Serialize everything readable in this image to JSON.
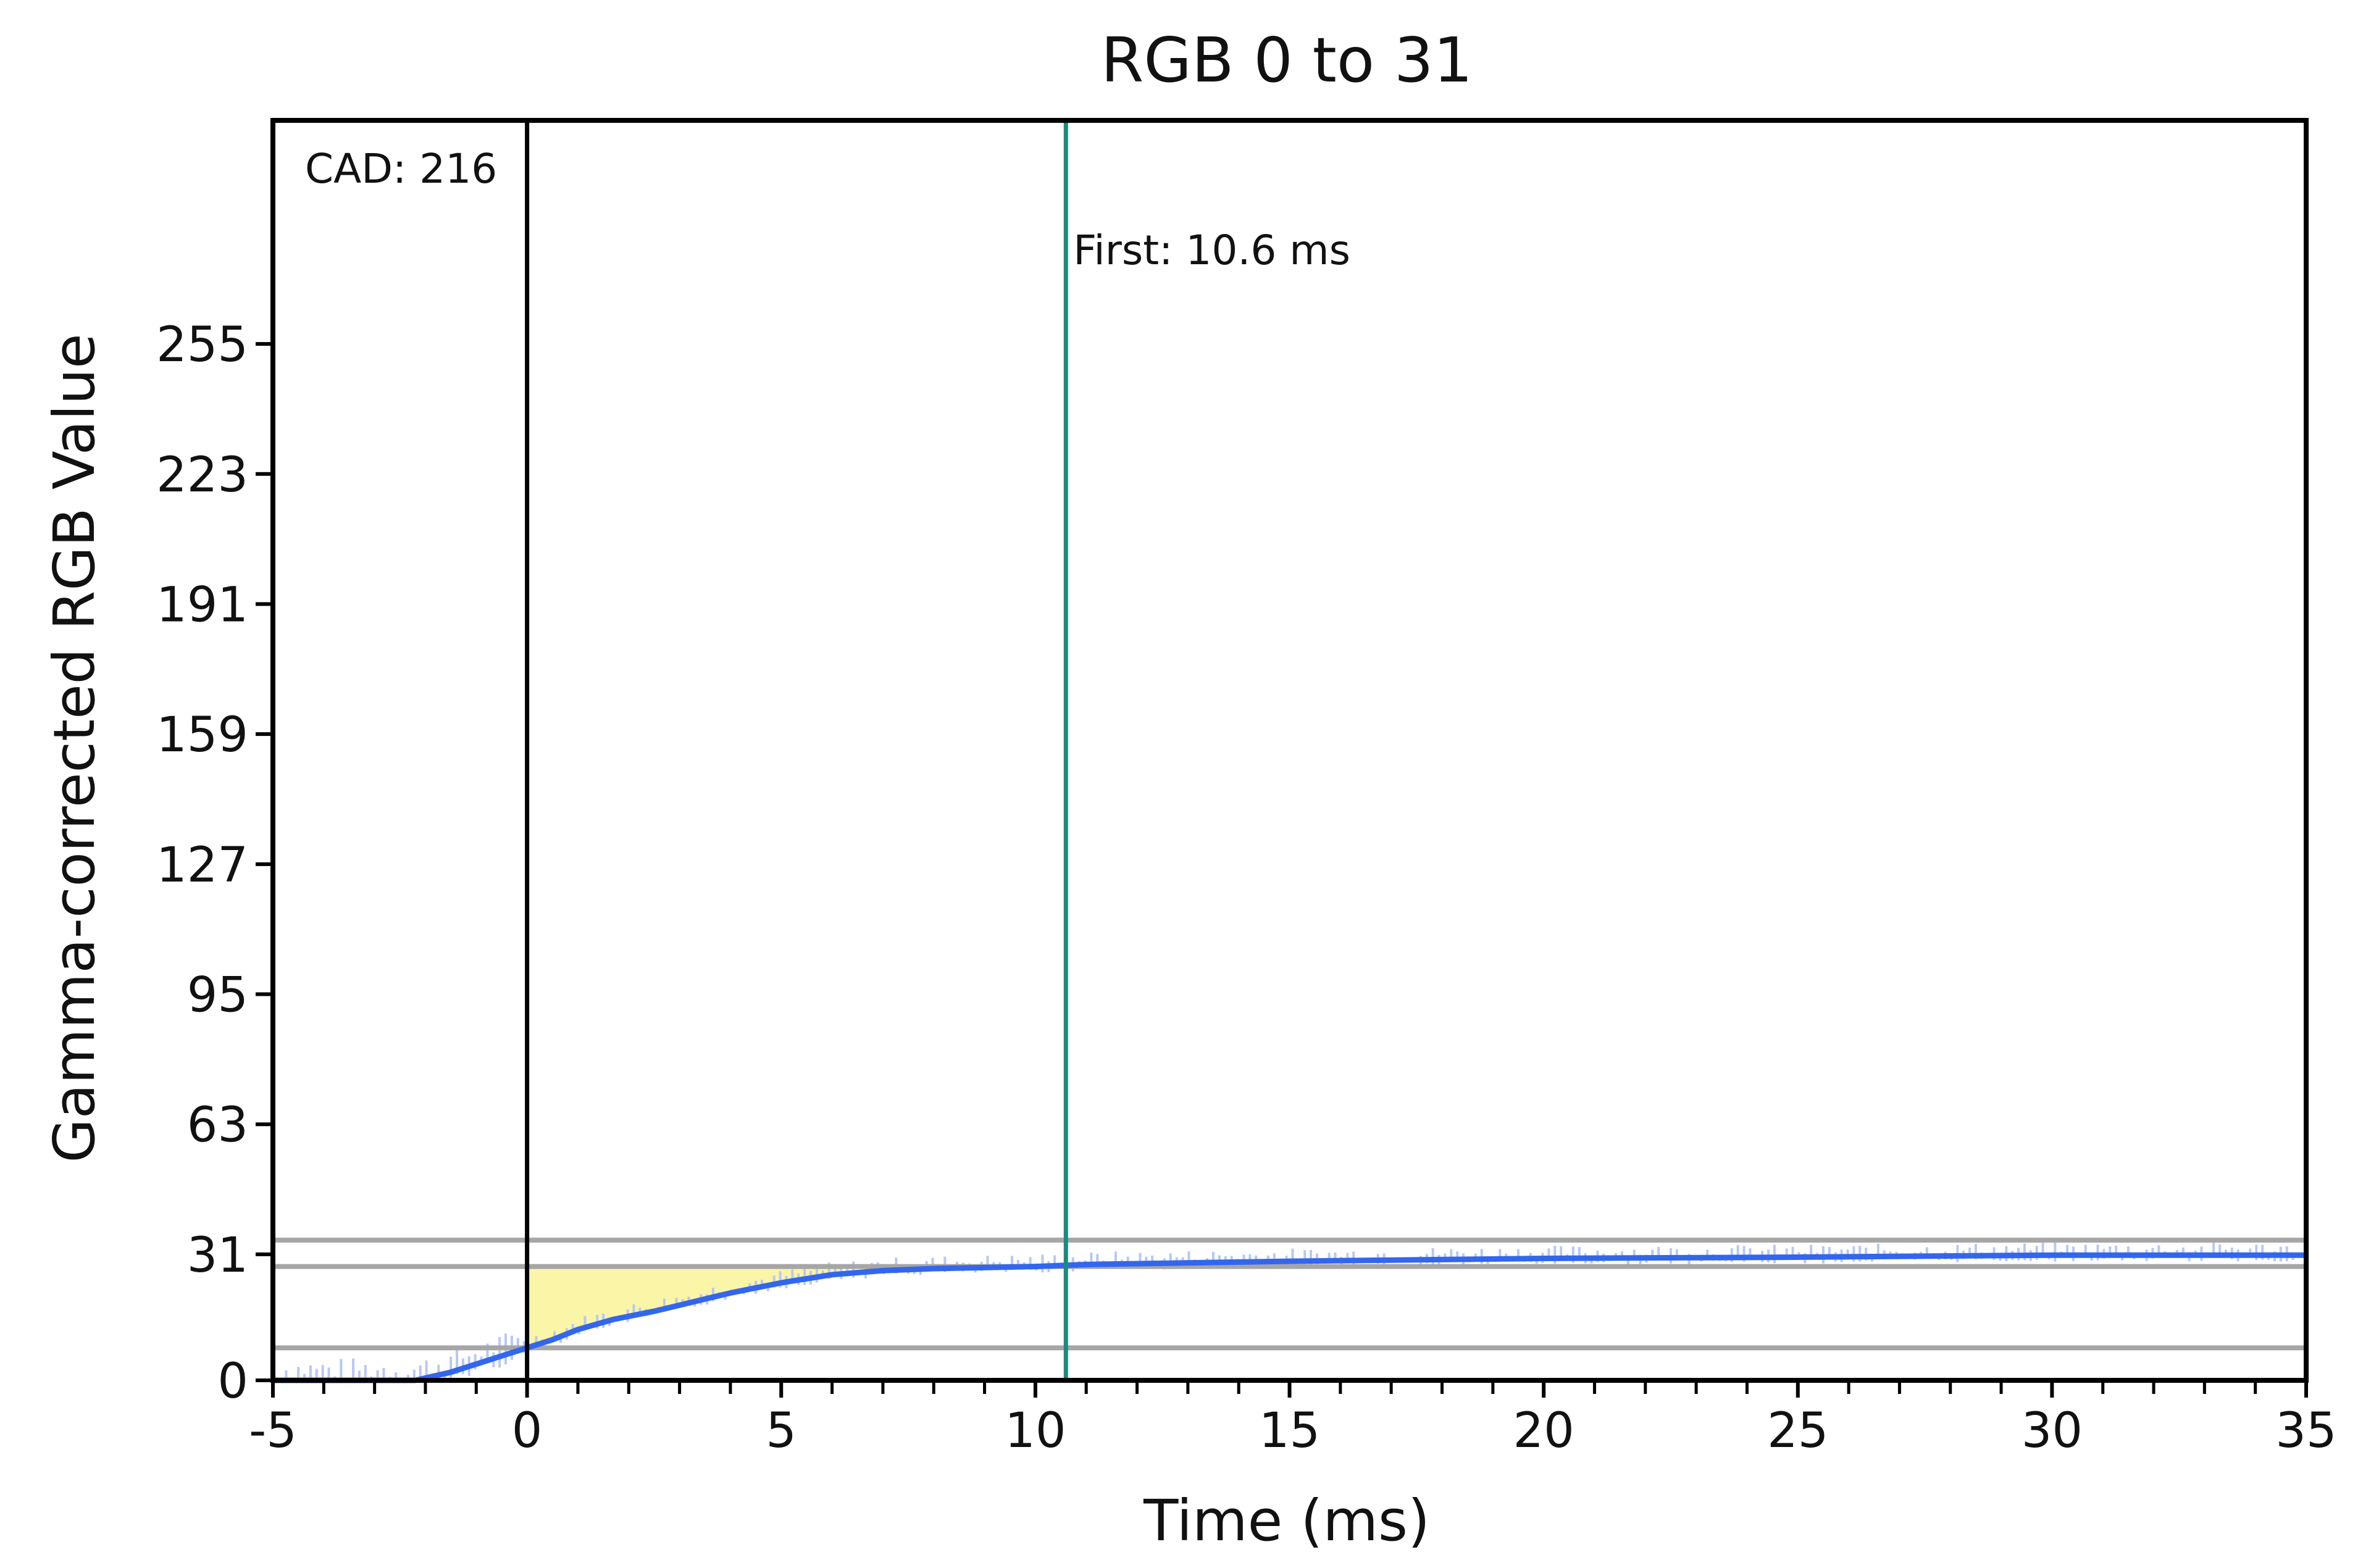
{
  "chart_data": {
    "type": "line",
    "title": "RGB 0 to 31",
    "xlabel": "Time (ms)",
    "ylabel": "Gamma-corrected RGB Value",
    "xlim": [
      -5,
      35
    ],
    "ylim": [
      0,
      310
    ],
    "x_ticks": [
      -5,
      0,
      5,
      10,
      15,
      20,
      25,
      30,
      35
    ],
    "x_tick_labels": [
      "-5",
      "0",
      "5",
      "10",
      "15",
      "20",
      "25",
      "30",
      "35"
    ],
    "y_ticks": [
      0,
      31,
      63,
      95,
      127,
      159,
      191,
      223,
      255
    ],
    "y_tick_labels": [
      "0",
      "31",
      "63",
      "95",
      "127",
      "159",
      "191",
      "223",
      "255"
    ],
    "grid": false,
    "colors": {
      "series": "#3366ee",
      "raw": "#b8c8f4",
      "reference_lines": "#a6a6a6",
      "first_marker": "#1a8a80",
      "cad_marker": "#000000",
      "fill": "#fbf5a8"
    },
    "reference_lines_y": [
      34.5,
      28,
      8
    ],
    "vertical_markers": [
      {
        "x": 0,
        "label": "CAD: 216"
      },
      {
        "x": 10.6,
        "label": "First: 10.6 ms"
      }
    ],
    "series": [
      {
        "x": [
          -5,
          -2.2,
          -1.5,
          -1,
          -0.5,
          0,
          0.5,
          1,
          1.7,
          2.5,
          3,
          4,
          5,
          6,
          7,
          8,
          10,
          11,
          15,
          20,
          25,
          30,
          35
        ],
        "y": [
          0,
          0,
          2,
          4,
          6,
          8,
          10,
          12.5,
          15,
          17,
          18.5,
          21.5,
          24,
          26,
          27,
          27.5,
          28,
          28.5,
          29.3,
          30,
          30.3,
          30.8,
          30.8
        ]
      }
    ],
    "shaded_region": {
      "x_from": 0,
      "x_to": 6.2,
      "y_upper": 28
    }
  }
}
